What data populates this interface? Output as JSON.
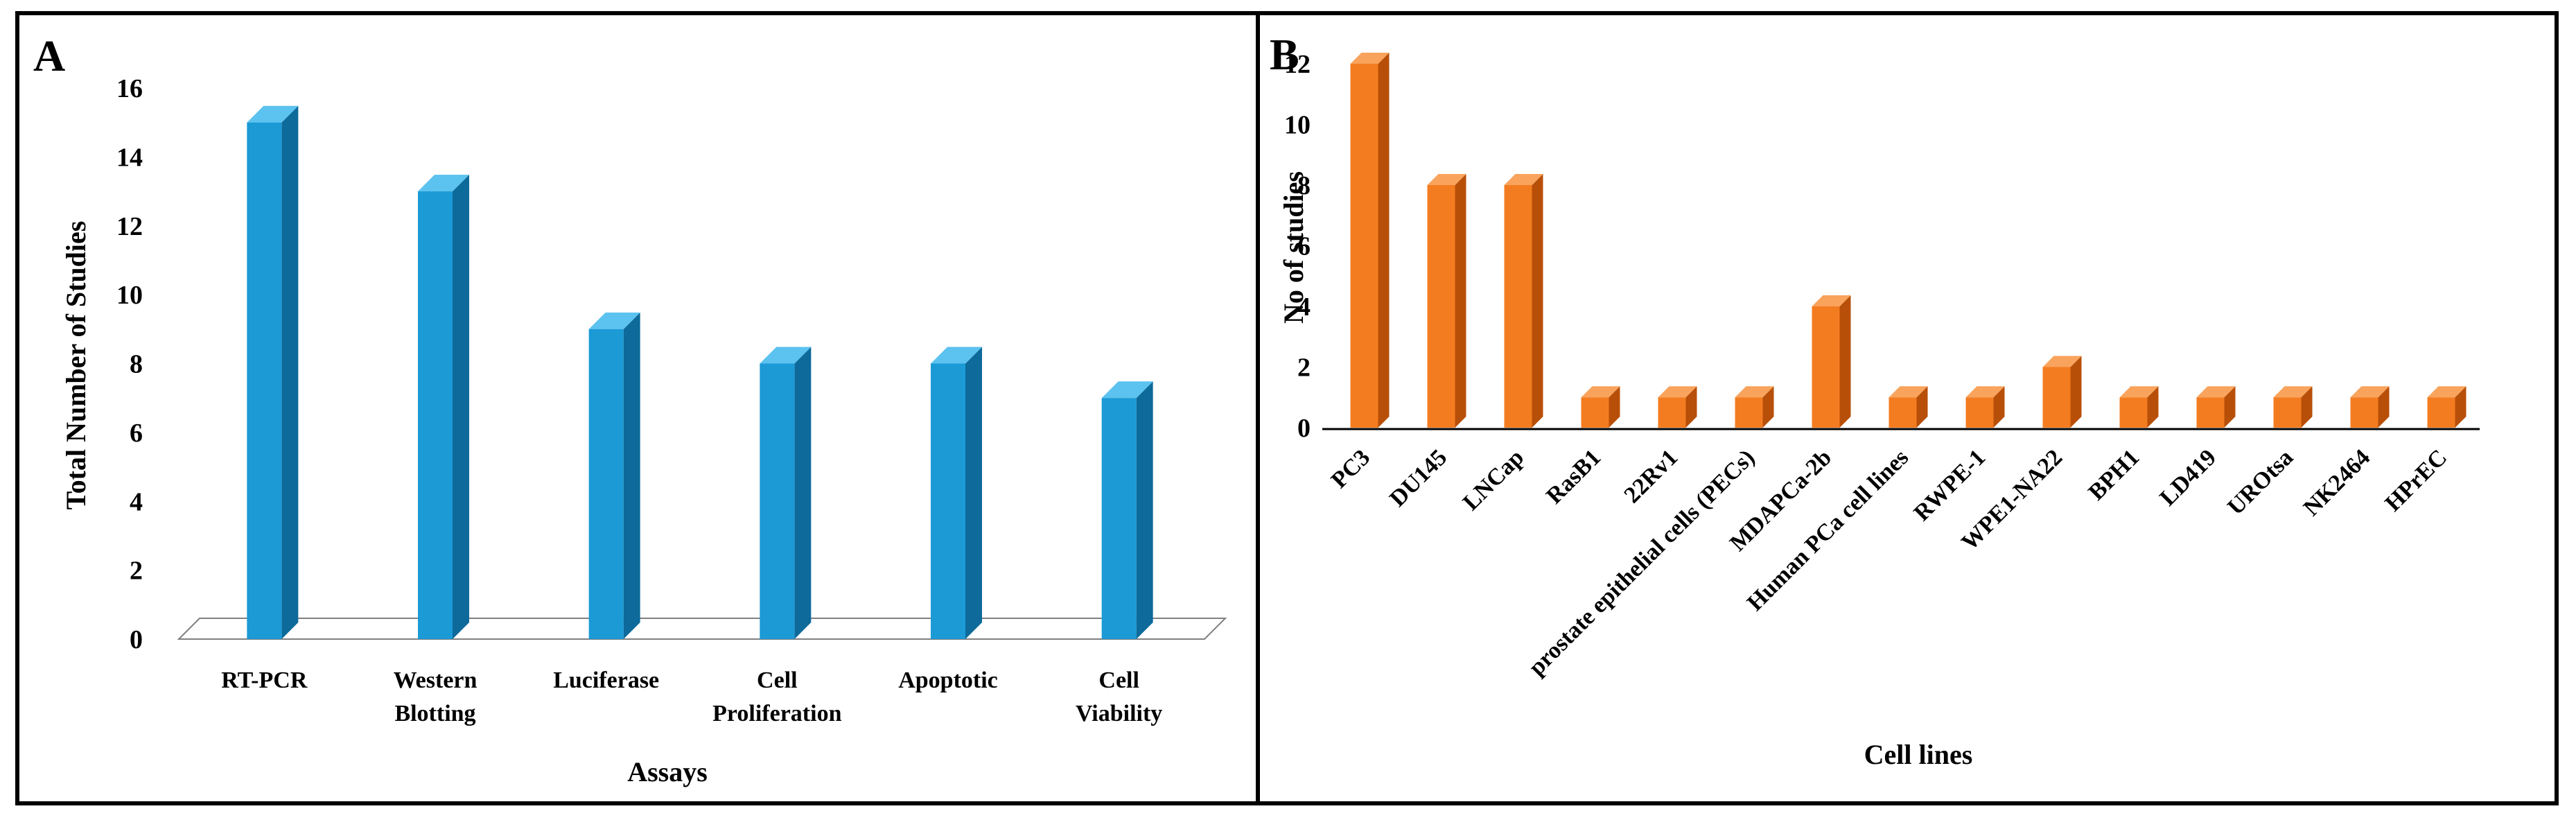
{
  "chart_data": [
    {
      "panel": "A",
      "type": "bar",
      "title": "",
      "xlabel": "Assays",
      "ylabel": "Total Number of Studies",
      "ylim": [
        0,
        16
      ],
      "yticks": [
        0,
        2,
        4,
        6,
        8,
        10,
        12,
        14,
        16
      ],
      "categories": [
        "RT-PCR",
        "Western Blotting",
        "Luciferase",
        "Cell Proliferation",
        "Apoptotic",
        "Cell Viability"
      ],
      "category_lines": [
        [
          "RT-PCR"
        ],
        [
          "Western",
          "Blotting"
        ],
        [
          "Luciferase"
        ],
        [
          "Cell",
          "Proliferation"
        ],
        [
          "Apoptotic"
        ],
        [
          "Cell",
          "Viability"
        ]
      ],
      "values": [
        15,
        13,
        9,
        8,
        8,
        7
      ],
      "color": "#1b9ad6",
      "side_color": "#0d6a9a",
      "top_color": "#5cc2ef",
      "grid": false
    },
    {
      "panel": "B",
      "type": "bar",
      "title": "",
      "xlabel": "Cell lines",
      "ylabel": "No of studies",
      "ylim": [
        0,
        12
      ],
      "yticks": [
        0,
        2,
        4,
        6,
        8,
        10,
        12
      ],
      "categories": [
        "PC3",
        "DU145",
        "LNCap",
        "RasB1",
        "22Rv1",
        "prostate epithelial cells (PECs)",
        "MDAPCa-2b",
        "Human PCa cell lines",
        "RWPE-1",
        "WPE1-NA22",
        "BPH1",
        "LD419",
        "UROtsa",
        "NK2464",
        "HPrEC"
      ],
      "values": [
        12,
        8,
        8,
        1,
        1,
        1,
        4,
        1,
        1,
        2,
        1,
        1,
        1,
        1,
        1
      ],
      "color": "#f47c20",
      "side_color": "#b84f08",
      "top_color": "#f9a35c",
      "grid": false
    }
  ]
}
